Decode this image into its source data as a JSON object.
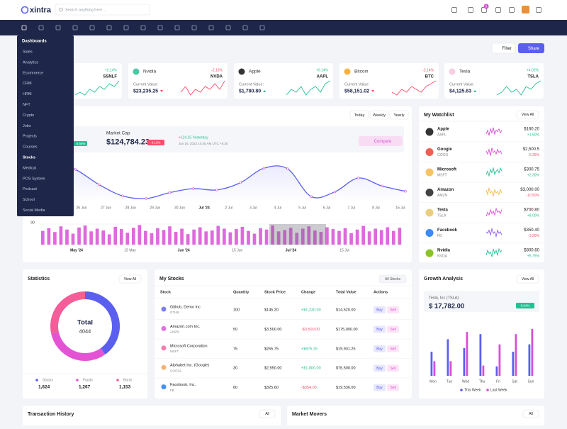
{
  "header": {
    "logo": "xintra",
    "search_placeholder": "Search anything here ...",
    "notification_count": "5"
  },
  "menu": {
    "title": "Dashboards",
    "items": [
      "Sales",
      "Analytics",
      "Ecommerce",
      "CRM",
      "HRM",
      "NFT",
      "Crypto",
      "Jobs",
      "Projects",
      "Courses",
      "Stocks",
      "Medical",
      "POS System",
      "Podcast",
      "School",
      "Social Media"
    ],
    "active_index": 10
  },
  "toolbar": {
    "filter": "Filter",
    "share": "Share"
  },
  "stock_cards": {
    "label": "Current Value:",
    "items": [
      {
        "change": "+2.14%",
        "ticker": "SSNLF",
        "color": "#26bf94",
        "spark": [
          3,
          4,
          3,
          5,
          4,
          6,
          5,
          7,
          6,
          8
        ]
      },
      {
        "name": "Nvidia",
        "change": "-2.13%",
        "ticker": "NVDA",
        "value": "$23,235.25",
        "color": "#fb4d6c",
        "spark": [
          4,
          6,
          3,
          5,
          4,
          6,
          5,
          7,
          5,
          8
        ]
      },
      {
        "name": "Apple",
        "change": "+0.14%",
        "ticker": "AAPL",
        "value": "$1,780.80",
        "color": "#26bf94",
        "spark": [
          3,
          5,
          4,
          6,
          3,
          5,
          6,
          4,
          7,
          8
        ]
      },
      {
        "name": "Bitcoin",
        "change": "-2.14%",
        "ticker": "BTC",
        "value": "$58,151.02",
        "color": "#fb4d6c",
        "spark": [
          4,
          3,
          5,
          4,
          6,
          5,
          4,
          6,
          7,
          8
        ]
      },
      {
        "name": "Tesla",
        "change": "+4.02%",
        "ticker": "TSLA",
        "value": "$4,125.63",
        "color": "#26bf94",
        "spark": [
          3,
          4,
          6,
          4,
          5,
          3,
          6,
          5,
          7,
          8
        ]
      }
    ]
  },
  "market": {
    "tabs": [
      "Today",
      "Weekly",
      "Yearly"
    ],
    "badge_left": "5.55%",
    "label": "Market Cap",
    "value": "$124,784.23",
    "change": "3.12%",
    "yesterday": "+124.25 Yesterday",
    "timestamp": "Jun 16, 2022 10:45 AM UTC +5:30",
    "compare": "Compare",
    "line": {
      "type": "line",
      "color": "#5b5ff0",
      "values": [
        92,
        75,
        63,
        40,
        23,
        19,
        28,
        34,
        32,
        43,
        65,
        64,
        22,
        29,
        50,
        38,
        30
      ],
      "xticks": [
        "26 Jun",
        "27 Jun",
        "28 Jun",
        "29 Jun",
        "30 Jun",
        "Jul '24",
        "2 Jul",
        "3 Jul",
        "4 Jul",
        "5 Jul",
        "6 Jul",
        "7 Jul",
        "8 Jul",
        "15 Jul"
      ]
    },
    "volume": {
      "type": "bar",
      "color": "#d84fd6",
      "ylim": [
        0,
        90
      ],
      "yticks": [
        90
      ],
      "xticks": [
        "May '24",
        "15 May",
        "Jun '24",
        "15 Jun",
        "Jul '24",
        "15 Jul"
      ],
      "values": [
        60,
        72,
        55,
        80,
        66,
        48,
        75,
        84,
        58,
        70,
        62,
        45,
        78,
        68,
        52,
        74,
        86,
        60,
        50,
        72,
        64,
        80,
        56,
        70,
        46,
        66,
        76,
        58,
        62,
        82,
        70,
        54,
        68,
        78,
        60,
        48,
        72,
        66,
        84,
        58,
        64,
        74,
        52,
        70,
        80,
        62,
        56,
        76,
        68,
        60,
        72,
        50,
        66,
        82,
        58,
        70,
        64,
        76,
        60,
        74
      ]
    }
  },
  "watchlist": {
    "title": "My Watchlist",
    "view_all": "View All",
    "rows": [
      {
        "name": "Apple",
        "ticker": "AAPL",
        "price": "$160.20",
        "change": "+1.50%",
        "color": "#d84fd6",
        "spark": [
          3,
          6,
          2,
          7,
          4,
          8,
          3,
          6,
          5,
          7,
          4,
          6
        ]
      },
      {
        "name": "Google",
        "ticker": "GOOG",
        "price": "$2,500.5",
        "change": "-5.25%",
        "color": "#d84fd6",
        "spark": [
          5,
          3,
          6,
          2,
          7,
          4,
          5,
          3,
          6,
          4,
          5,
          3
        ]
      },
      {
        "name": "Microsoft",
        "ticker": "MSFT",
        "price": "$300.75",
        "change": "+2.30%",
        "color": "#26bf94",
        "spark": [
          3,
          5,
          2,
          6,
          4,
          7,
          3,
          5,
          6,
          4,
          7,
          5
        ]
      },
      {
        "name": "Amazon",
        "ticker": "AMZN",
        "price": "$3,000.00",
        "change": "-10.50%",
        "color": "#f5b849",
        "spark": [
          6,
          3,
          7,
          4,
          5,
          2,
          6,
          4,
          5,
          3,
          6,
          4
        ]
      },
      {
        "name": "Tesla",
        "ticker": "TSLA",
        "price": "$700.80",
        "change": "+8.00%",
        "color": "#d84fd6",
        "spark": [
          2,
          5,
          3,
          7,
          4,
          6,
          3,
          8,
          5,
          6,
          4,
          7
        ]
      },
      {
        "name": "Facebook",
        "ticker": "FB",
        "price": "$350.40",
        "change": "-3.20%",
        "color": "#8c5cf0",
        "spark": [
          5,
          4,
          6,
          3,
          7,
          4,
          5,
          2,
          6,
          4,
          5,
          3
        ]
      },
      {
        "name": "Nvidia",
        "ticker": "NVDA",
        "price": "$800.60",
        "change": "+5.75%",
        "color": "#26bf94",
        "spark": [
          3,
          6,
          4,
          5,
          2,
          7,
          4,
          6,
          3,
          7,
          5,
          6
        ]
      }
    ]
  },
  "statistics": {
    "title": "Statistics",
    "view_all": "View All",
    "chart": {
      "type": "donut",
      "center_label": "Total",
      "center_value": "4044",
      "categories": [
        "Stocks",
        "Funds",
        "Bond"
      ],
      "values": [
        1624,
        1267,
        1153
      ],
      "value_labels": [
        "1,624",
        "1,267",
        "1,153"
      ],
      "colors": [
        "#5b5ff0",
        "#e354d4",
        "#f55d99"
      ]
    }
  },
  "my_stocks": {
    "title": "My Stocks",
    "filter": "All Stocks",
    "columns": [
      "Stock",
      "Quantity",
      "Stock Price",
      "Change",
      "Total Value",
      "Actions"
    ],
    "buy": "Buy",
    "sell": "Sell",
    "rows": [
      {
        "name": "Github, Demo Inc",
        "ticker": "GTHB",
        "quantity": 100,
        "price": "$145.20",
        "change": "+$1,230.00",
        "total": "$14,520.00"
      },
      {
        "name": "Amazon.com Inc.",
        "ticker": "AMZN",
        "quantity": 50,
        "price": "$3,500.00",
        "change": "-$3,500.00",
        "total": "$175,000.00"
      },
      {
        "name": "Microsoft Corporation",
        "ticker": "MSFT",
        "quantity": 75,
        "price": "$265.75",
        "change": "+$876.25",
        "total": "$19,931.25"
      },
      {
        "name": "Alphabet Inc. (Google)",
        "ticker": "GOOGL",
        "quantity": 30,
        "price": "$2,550.00",
        "change": "+$1,800.00",
        "total": "$76,500.00"
      },
      {
        "name": "Facebook, Inc.",
        "ticker": "FB",
        "quantity": 60,
        "price": "$325.60",
        "change": "-$354.00",
        "total": "$19,536.00"
      }
    ]
  },
  "growth": {
    "title": "Growth Analysis",
    "view_all": "View All",
    "company": "Tesla, Inc (TSLA)",
    "value": "$ 17,782.00",
    "change": "0.64%",
    "chart": {
      "type": "bar",
      "categories": [
        "Mon",
        "Tue",
        "Wed",
        "Thu",
        "Fri",
        "Sat",
        "Sun"
      ],
      "series": [
        {
          "name": "This Week",
          "color": "#5b5ff0",
          "values": [
            33,
            50,
            38,
            57,
            13,
            33,
            43
          ]
        },
        {
          "name": "Last Week",
          "color": "#d84fd6",
          "values": [
            20,
            20,
            60,
            14,
            43,
            57,
            64
          ]
        }
      ]
    }
  },
  "transactions": {
    "title": "Transaction History",
    "filter": "All"
  },
  "movers": {
    "title": "Market Movers",
    "filter": "All"
  }
}
